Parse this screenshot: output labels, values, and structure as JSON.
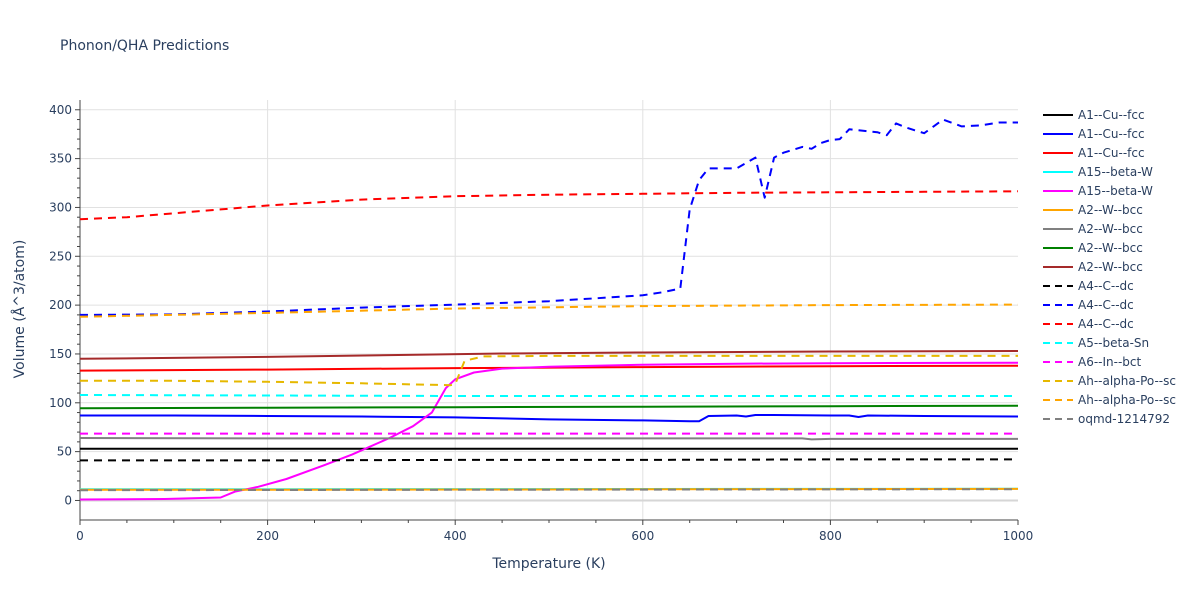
{
  "chart_data": {
    "type": "line",
    "title": "Phonon/QHA Predictions",
    "xlabel": "Temperature (K)",
    "ylabel": "Volume (Å^3/atom)",
    "xlim": [
      0,
      1000
    ],
    "ylim": [
      -20,
      410
    ],
    "xticks": [
      0,
      200,
      400,
      600,
      800,
      1000
    ],
    "yticks": [
      0,
      50,
      100,
      150,
      200,
      250,
      300,
      350,
      400
    ],
    "grid": true,
    "legend_position": "right",
    "series": [
      {
        "name": "A1--Cu--fcc",
        "color": "#000000",
        "dash": "solid",
        "x": [
          0,
          200,
          400,
          600,
          800,
          1000
        ],
        "y": [
          53,
          53,
          53,
          53,
          53,
          53
        ]
      },
      {
        "name": "A1--Cu--fcc",
        "color": "#0000ff",
        "dash": "solid",
        "x": [
          0,
          100,
          200,
          300,
          400,
          500,
          600,
          650,
          660,
          670,
          700,
          710,
          720,
          740,
          800,
          820,
          830,
          840,
          900,
          1000
        ],
        "y": [
          87,
          87,
          86.5,
          86,
          85,
          83,
          82,
          81,
          81,
          86.5,
          87,
          86,
          87.5,
          87.5,
          87,
          87,
          85.5,
          87,
          86.5,
          86
        ]
      },
      {
        "name": "A1--Cu--fcc",
        "color": "#ff0000",
        "dash": "solid",
        "x": [
          0,
          200,
          400,
          600,
          800,
          1000
        ],
        "y": [
          133,
          134,
          135.5,
          136.5,
          137.5,
          138
        ]
      },
      {
        "name": "A15--beta-W",
        "color": "#00ffff",
        "dash": "solid",
        "x": [
          0,
          200,
          400,
          600,
          800,
          1000
        ],
        "y": [
          11.5,
          11.5,
          11.6,
          11.7,
          11.8,
          11.9
        ]
      },
      {
        "name": "A15--beta-W",
        "color": "#ff00ff",
        "dash": "solid",
        "x": [
          0,
          90,
          150,
          165,
          190,
          220,
          260,
          290,
          330,
          355,
          375,
          390,
          400,
          420,
          450,
          500,
          600,
          700,
          800,
          1000
        ],
        "y": [
          1,
          1.5,
          3,
          9,
          14,
          22,
          36,
          47,
          64,
          76,
          90,
          115,
          124,
          131,
          135,
          137,
          139,
          140,
          140.5,
          141
        ]
      },
      {
        "name": "A2--W--bcc",
        "color": "#ffa500",
        "dash": "solid",
        "x": [
          0,
          200,
          400,
          600,
          800,
          1000
        ],
        "y": [
          11,
          11,
          11.2,
          11.4,
          11.6,
          11.8
        ]
      },
      {
        "name": "A2--W--bcc",
        "color": "#808080",
        "dash": "solid",
        "x": [
          0,
          200,
          400,
          600,
          770,
          780,
          800,
          1000
        ],
        "y": [
          64,
          63.5,
          63.5,
          63.5,
          63.5,
          62.5,
          63,
          63
        ]
      },
      {
        "name": "A2--W--bcc",
        "color": "#008000",
        "dash": "solid",
        "x": [
          0,
          200,
          400,
          600,
          800,
          1000
        ],
        "y": [
          94.5,
          95,
          95.5,
          96,
          96.5,
          97
        ]
      },
      {
        "name": "A2--W--bcc",
        "color": "#a52a2a",
        "dash": "solid",
        "x": [
          0,
          200,
          450,
          600,
          800,
          1000
        ],
        "y": [
          145,
          147,
          150.5,
          151.5,
          152.5,
          153
        ]
      },
      {
        "name": "A4--C--dc",
        "color": "#000000",
        "dash": "dash",
        "x": [
          0,
          200,
          400,
          600,
          800,
          1000
        ],
        "y": [
          41,
          41,
          41.5,
          41.5,
          42,
          42
        ]
      },
      {
        "name": "A4--C--dc",
        "color": "#0000ff",
        "dash": "dash",
        "x": [
          0,
          100,
          200,
          300,
          400,
          500,
          550,
          600,
          620,
          640,
          650,
          660,
          670,
          700,
          720,
          730,
          740,
          750,
          770,
          780,
          790,
          800,
          810,
          820,
          840,
          850,
          860,
          870,
          880,
          890,
          900,
          910,
          920,
          940,
          960,
          980,
          1000
        ],
        "y": [
          190,
          190.5,
          193.5,
          197.5,
          200.5,
          204,
          207,
          210,
          213,
          217,
          298,
          328,
          340,
          340,
          351,
          310,
          351,
          356,
          362,
          360,
          366,
          369,
          370,
          380,
          378,
          377,
          374,
          386,
          382,
          379,
          376,
          383,
          390,
          383,
          384,
          387,
          387
        ]
      },
      {
        "name": "A4--C--dc",
        "color": "#ff0000",
        "dash": "dash",
        "x": [
          0,
          50,
          100,
          150,
          200,
          300,
          400,
          500,
          600,
          700,
          800,
          900,
          1000
        ],
        "y": [
          288,
          290,
          294,
          298,
          302,
          308,
          311.5,
          313,
          314,
          315,
          315.5,
          316,
          316.5
        ]
      },
      {
        "name": "A5--beta-Sn",
        "color": "#00ffff",
        "dash": "dash",
        "x": [
          0,
          200,
          400,
          600,
          800,
          1000
        ],
        "y": [
          108,
          107.5,
          107,
          107,
          107,
          107
        ]
      },
      {
        "name": "A6--In--bct",
        "color": "#ff00ff",
        "dash": "dash",
        "x": [
          0,
          200,
          400,
          600,
          800,
          1000
        ],
        "y": [
          68.5,
          68.5,
          68.5,
          68.5,
          68.5,
          68.5
        ]
      },
      {
        "name": "Ah--alpha-Po--sc",
        "color": "#e6b800",
        "dash": "dash",
        "x": [
          0,
          100,
          200,
          300,
          395,
          400,
          410,
          430,
          500,
          600,
          700,
          800,
          900,
          1000
        ],
        "y": [
          122.5,
          122.5,
          121.5,
          120,
          118,
          119,
          143,
          147.5,
          148,
          148,
          148,
          148,
          148,
          148
        ]
      },
      {
        "name": "Ah--alpha-Po--sc",
        "color": "#ffa500",
        "dash": "dash",
        "x": [
          0,
          200,
          400,
          600,
          800,
          1000
        ],
        "y": [
          188,
          192,
          196.5,
          199,
          200,
          200.5
        ]
      },
      {
        "name": "oqmd-1214792",
        "color": "#808080",
        "dash": "dash",
        "x": [
          0,
          200,
          400,
          600,
          800,
          1000
        ],
        "y": [
          10.5,
          10.7,
          10.9,
          11.1,
          11.3,
          11.5
        ]
      }
    ]
  }
}
